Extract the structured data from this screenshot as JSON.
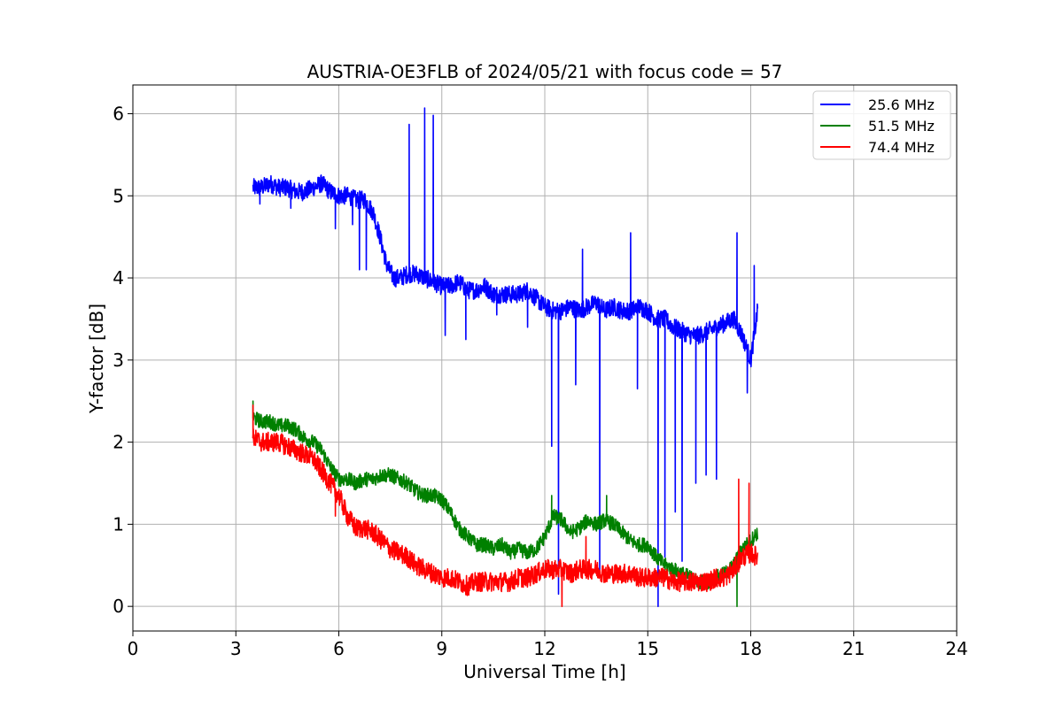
{
  "chart_data": {
    "type": "line",
    "title": "AUSTRIA-OE3FLB of 2024/05/21 with focus code = 57",
    "xlabel": "Universal Time [h]",
    "ylabel": "Y-factor [dB]",
    "xlim": [
      0,
      24
    ],
    "ylim": [
      -0.3,
      6.35
    ],
    "xticks": [
      0,
      3,
      6,
      9,
      12,
      15,
      18,
      21,
      24
    ],
    "yticks": [
      0,
      1,
      2,
      3,
      4,
      5,
      6
    ],
    "grid": true,
    "legend_position": "top-right",
    "series": [
      {
        "name": "25.6 MHz",
        "color": "#0000ff",
        "x": [
          3.5,
          3.75,
          4.0,
          4.25,
          4.5,
          4.75,
          5.0,
          5.25,
          5.5,
          5.75,
          6.0,
          6.25,
          6.5,
          6.75,
          7.0,
          7.2,
          7.4,
          7.6,
          7.8,
          8.0,
          8.25,
          8.5,
          8.75,
          9.0,
          9.25,
          9.5,
          9.75,
          10.0,
          10.25,
          10.5,
          10.75,
          11.0,
          11.25,
          11.5,
          11.75,
          12.0,
          12.25,
          12.5,
          12.75,
          13.0,
          13.25,
          13.5,
          13.75,
          14.0,
          14.25,
          14.5,
          14.75,
          15.0,
          15.25,
          15.5,
          15.75,
          16.0,
          16.25,
          16.5,
          16.75,
          17.0,
          17.25,
          17.5,
          17.75,
          18.0,
          18.2
        ],
        "y": [
          5.1,
          5.1,
          5.15,
          5.1,
          5.1,
          5.05,
          5.05,
          5.1,
          5.15,
          5.05,
          5.0,
          5.0,
          4.95,
          4.95,
          4.8,
          4.5,
          4.15,
          4.0,
          4.0,
          4.05,
          4.05,
          4.0,
          3.95,
          3.9,
          3.9,
          3.95,
          3.85,
          3.85,
          3.9,
          3.8,
          3.8,
          3.8,
          3.8,
          3.85,
          3.75,
          3.65,
          3.6,
          3.6,
          3.65,
          3.6,
          3.65,
          3.7,
          3.6,
          3.65,
          3.6,
          3.6,
          3.65,
          3.6,
          3.5,
          3.5,
          3.4,
          3.35,
          3.3,
          3.3,
          3.35,
          3.4,
          3.45,
          3.5,
          3.3,
          3.0,
          3.6
        ],
        "spikes": [
          [
            3.7,
            4.9
          ],
          [
            4.6,
            4.85
          ],
          [
            5.9,
            4.6
          ],
          [
            6.4,
            4.65
          ],
          [
            6.6,
            4.1
          ],
          [
            6.8,
            4.1
          ],
          [
            8.05,
            5.87
          ],
          [
            8.5,
            6.07
          ],
          [
            8.75,
            5.98
          ],
          [
            9.1,
            3.3
          ],
          [
            9.7,
            3.25
          ],
          [
            10.6,
            3.55
          ],
          [
            11.5,
            3.4
          ],
          [
            12.2,
            1.95
          ],
          [
            12.4,
            0.15
          ],
          [
            12.9,
            2.7
          ],
          [
            13.1,
            4.35
          ],
          [
            13.6,
            0.4
          ],
          [
            14.5,
            4.55
          ],
          [
            14.7,
            2.65
          ],
          [
            15.3,
            0.0
          ],
          [
            15.5,
            0.6
          ],
          [
            15.8,
            1.15
          ],
          [
            16.0,
            0.55
          ],
          [
            16.4,
            1.5
          ],
          [
            16.7,
            1.6
          ],
          [
            17.0,
            1.55
          ],
          [
            17.6,
            4.55
          ],
          [
            17.9,
            2.6
          ],
          [
            18.1,
            4.15
          ]
        ]
      },
      {
        "name": "51.5 MHz",
        "color": "#008000",
        "x": [
          3.5,
          3.75,
          4.0,
          4.25,
          4.5,
          4.75,
          5.0,
          5.25,
          5.5,
          5.75,
          6.0,
          6.25,
          6.5,
          6.75,
          7.0,
          7.25,
          7.5,
          7.75,
          8.0,
          8.25,
          8.5,
          8.75,
          9.0,
          9.25,
          9.5,
          9.75,
          10.0,
          10.25,
          10.5,
          10.75,
          11.0,
          11.25,
          11.5,
          11.75,
          12.0,
          12.25,
          12.5,
          12.75,
          13.0,
          13.25,
          13.5,
          13.75,
          14.0,
          14.25,
          14.5,
          14.75,
          15.0,
          15.25,
          15.5,
          15.75,
          16.0,
          16.25,
          16.5,
          16.75,
          17.0,
          17.25,
          17.5,
          17.75,
          18.0,
          18.2
        ],
        "y": [
          2.3,
          2.25,
          2.25,
          2.2,
          2.2,
          2.15,
          2.05,
          2.0,
          1.9,
          1.7,
          1.55,
          1.55,
          1.5,
          1.55,
          1.55,
          1.6,
          1.6,
          1.55,
          1.5,
          1.4,
          1.35,
          1.35,
          1.3,
          1.15,
          0.95,
          0.85,
          0.75,
          0.75,
          0.7,
          0.75,
          0.65,
          0.7,
          0.65,
          0.7,
          0.85,
          1.1,
          1.05,
          0.9,
          0.95,
          1.05,
          1.0,
          1.05,
          1.0,
          0.9,
          0.8,
          0.75,
          0.75,
          0.6,
          0.5,
          0.45,
          0.4,
          0.35,
          0.3,
          0.3,
          0.35,
          0.4,
          0.5,
          0.7,
          0.8,
          0.9
        ],
        "spikes": [
          [
            3.5,
            2.5
          ],
          [
            12.2,
            1.35
          ],
          [
            13.8,
            1.35
          ],
          [
            17.6,
            0.0
          ]
        ]
      },
      {
        "name": "74.4 MHz",
        "color": "#ff0000",
        "x": [
          3.5,
          3.75,
          4.0,
          4.25,
          4.5,
          4.75,
          5.0,
          5.25,
          5.5,
          5.75,
          6.0,
          6.25,
          6.5,
          6.75,
          7.0,
          7.25,
          7.5,
          7.75,
          8.0,
          8.25,
          8.5,
          8.75,
          9.0,
          9.25,
          9.5,
          9.75,
          10.0,
          10.25,
          10.5,
          10.75,
          11.0,
          11.25,
          11.5,
          11.75,
          12.0,
          12.25,
          12.5,
          12.75,
          13.0,
          13.25,
          13.5,
          13.75,
          14.0,
          14.25,
          14.5,
          14.75,
          15.0,
          15.25,
          15.5,
          15.75,
          16.0,
          16.25,
          16.5,
          16.75,
          17.0,
          17.25,
          17.5,
          17.75,
          18.0,
          18.2
        ],
        "y": [
          2.05,
          2.0,
          2.0,
          2.0,
          1.95,
          1.9,
          1.85,
          1.8,
          1.65,
          1.5,
          1.35,
          1.1,
          0.95,
          0.95,
          0.9,
          0.8,
          0.7,
          0.65,
          0.6,
          0.5,
          0.45,
          0.4,
          0.35,
          0.35,
          0.3,
          0.25,
          0.3,
          0.3,
          0.3,
          0.3,
          0.3,
          0.35,
          0.35,
          0.4,
          0.45,
          0.45,
          0.45,
          0.4,
          0.45,
          0.45,
          0.45,
          0.4,
          0.4,
          0.4,
          0.4,
          0.35,
          0.35,
          0.35,
          0.35,
          0.3,
          0.3,
          0.3,
          0.3,
          0.3,
          0.35,
          0.35,
          0.45,
          0.6,
          0.65,
          0.6
        ],
        "spikes": [
          [
            3.5,
            2.45
          ],
          [
            5.9,
            1.1
          ],
          [
            12.5,
            0.0
          ],
          [
            13.2,
            0.85
          ],
          [
            17.65,
            1.55
          ],
          [
            17.95,
            1.5
          ]
        ]
      }
    ]
  }
}
